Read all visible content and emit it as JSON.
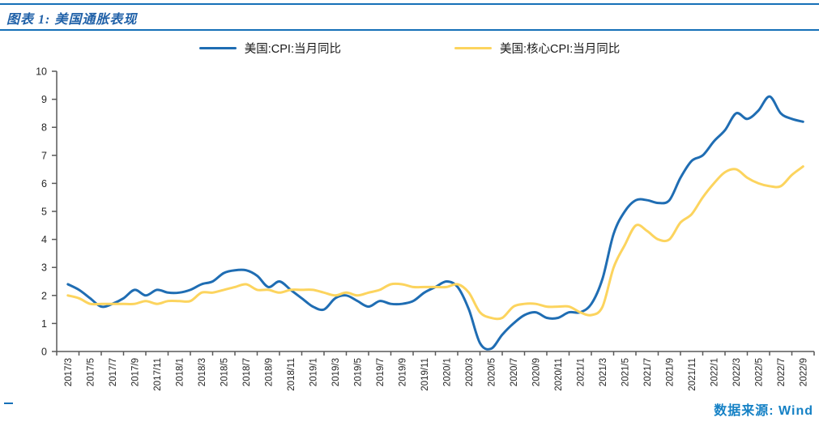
{
  "colors": {
    "rule": "#1670b8",
    "title": "#2061a8",
    "source": "#1581c5",
    "axis": "#595959",
    "tick_text": "#262626",
    "cpi_line": "#1f6db3",
    "core_cpi_line": "#fcd45e"
  },
  "chart_data": {
    "type": "line",
    "title": "图表 1: 美国通胀表现",
    "source": "数据来源: Wind",
    "xlabel": "",
    "ylabel": "",
    "ylim": [
      0,
      10
    ],
    "y_ticks": [
      0,
      1,
      2,
      3,
      4,
      5,
      6,
      7,
      8,
      9,
      10
    ],
    "x_tick_every": 2,
    "grid": false,
    "legend_position": "top-center",
    "x": [
      "2017/3",
      "2017/4",
      "2017/5",
      "2017/6",
      "2017/7",
      "2017/8",
      "2017/9",
      "2017/10",
      "2017/11",
      "2017/12",
      "2018/1",
      "2018/2",
      "2018/3",
      "2018/4",
      "2018/5",
      "2018/6",
      "2018/7",
      "2018/8",
      "2018/9",
      "2018/10",
      "2018/11",
      "2018/12",
      "2019/1",
      "2019/2",
      "2019/3",
      "2019/4",
      "2019/5",
      "2019/6",
      "2019/7",
      "2019/8",
      "2019/9",
      "2019/10",
      "2019/11",
      "2019/12",
      "2020/1",
      "2020/2",
      "2020/3",
      "2020/4",
      "2020/5",
      "2020/6",
      "2020/7",
      "2020/8",
      "2020/9",
      "2020/10",
      "2020/11",
      "2020/12",
      "2021/1",
      "2021/2",
      "2021/3",
      "2021/4",
      "2021/5",
      "2021/6",
      "2021/7",
      "2021/8",
      "2021/9",
      "2021/10",
      "2021/11",
      "2021/12",
      "2022/1",
      "2022/2",
      "2022/3",
      "2022/4",
      "2022/5",
      "2022/6",
      "2022/7",
      "2022/8",
      "2022/9"
    ],
    "series": [
      {
        "name": "美国:CPI:当月同比",
        "color": "#1f6db3",
        "values": [
          2.4,
          2.2,
          1.9,
          1.6,
          1.7,
          1.9,
          2.2,
          2.0,
          2.2,
          2.1,
          2.1,
          2.2,
          2.4,
          2.5,
          2.8,
          2.9,
          2.9,
          2.7,
          2.3,
          2.5,
          2.2,
          1.9,
          1.6,
          1.5,
          1.9,
          2.0,
          1.8,
          1.6,
          1.8,
          1.7,
          1.7,
          1.8,
          2.1,
          2.3,
          2.5,
          2.3,
          1.5,
          0.3,
          0.1,
          0.6,
          1.0,
          1.3,
          1.4,
          1.2,
          1.2,
          1.4,
          1.4,
          1.7,
          2.6,
          4.2,
          5.0,
          5.4,
          5.4,
          5.3,
          5.4,
          6.2,
          6.8,
          7.0,
          7.5,
          7.9,
          8.5,
          8.3,
          8.6,
          9.1,
          8.5,
          8.3,
          8.2
        ]
      },
      {
        "name": "美国:核心CPI:当月同比",
        "color": "#fcd45e",
        "values": [
          2.0,
          1.9,
          1.7,
          1.7,
          1.7,
          1.7,
          1.7,
          1.8,
          1.7,
          1.8,
          1.8,
          1.8,
          2.1,
          2.1,
          2.2,
          2.3,
          2.4,
          2.2,
          2.2,
          2.1,
          2.2,
          2.2,
          2.2,
          2.1,
          2.0,
          2.1,
          2.0,
          2.1,
          2.2,
          2.4,
          2.4,
          2.3,
          2.3,
          2.3,
          2.3,
          2.4,
          2.1,
          1.4,
          1.2,
          1.2,
          1.6,
          1.7,
          1.7,
          1.6,
          1.6,
          1.6,
          1.4,
          1.3,
          1.6,
          3.0,
          3.8,
          4.5,
          4.3,
          4.0,
          4.0,
          4.6,
          4.9,
          5.5,
          6.0,
          6.4,
          6.5,
          6.2,
          6.0,
          5.9,
          5.9,
          6.3,
          6.6
        ]
      }
    ]
  }
}
